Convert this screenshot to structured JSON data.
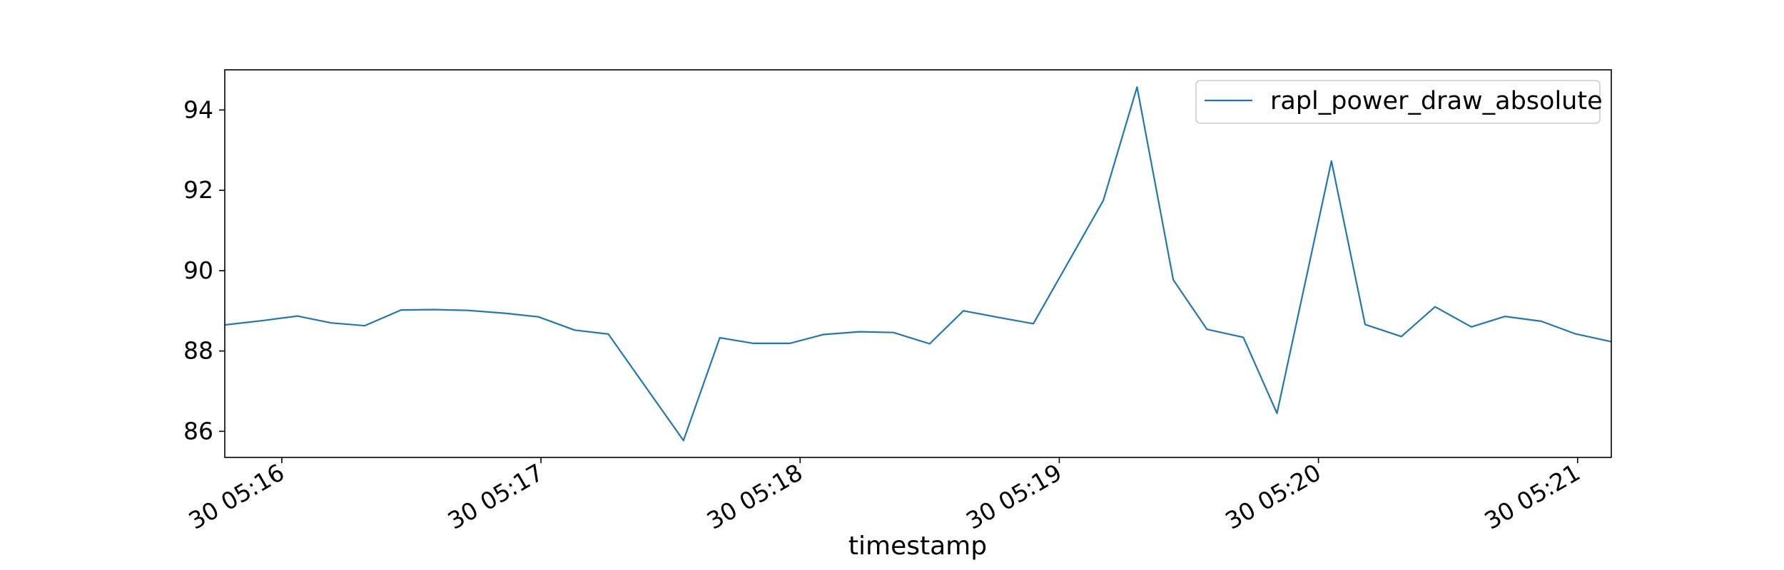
{
  "chart_data": {
    "type": "line",
    "title": "",
    "xlabel": "timestamp",
    "ylabel": "",
    "x_tick_labels": [
      "30 05:16",
      "30 05:17",
      "30 05:18",
      "30 05:19",
      "30 05:20",
      "30 05:21"
    ],
    "x_tick_minutes": [
      16,
      17,
      18,
      19,
      20,
      21
    ],
    "y_ticks": [
      86,
      88,
      90,
      92,
      94
    ],
    "xlim_minutes": [
      15.78,
      21.13
    ],
    "ylim": [
      85.35,
      95.0
    ],
    "grid": false,
    "legend_position": "top-right",
    "series": [
      {
        "name": "rapl_power_draw_absolute",
        "color": "#1f77b4",
        "x_minutes": [
          15.78,
          15.93,
          16.06,
          16.19,
          16.32,
          16.46,
          16.59,
          16.72,
          16.86,
          16.99,
          17.13,
          17.26,
          17.55,
          17.69,
          17.82,
          17.96,
          18.09,
          18.23,
          18.36,
          18.5,
          18.63,
          18.77,
          18.9,
          19.04,
          19.17,
          19.3,
          19.44,
          19.57,
          19.71,
          19.84,
          20.05,
          20.18,
          20.32,
          20.45,
          20.59,
          20.72,
          20.86,
          20.99,
          21.13
        ],
        "y": [
          88.65,
          88.76,
          88.87,
          88.7,
          88.63,
          89.02,
          89.03,
          89.01,
          88.94,
          88.85,
          88.52,
          88.42,
          85.77,
          88.33,
          88.19,
          88.19,
          88.41,
          88.48,
          88.46,
          88.18,
          89.0,
          88.83,
          88.68,
          90.27,
          91.75,
          94.57,
          89.77,
          88.54,
          88.34,
          86.45,
          92.73,
          88.66,
          88.36,
          89.1,
          88.6,
          88.86,
          88.74,
          88.43,
          88.23
        ]
      }
    ]
  }
}
